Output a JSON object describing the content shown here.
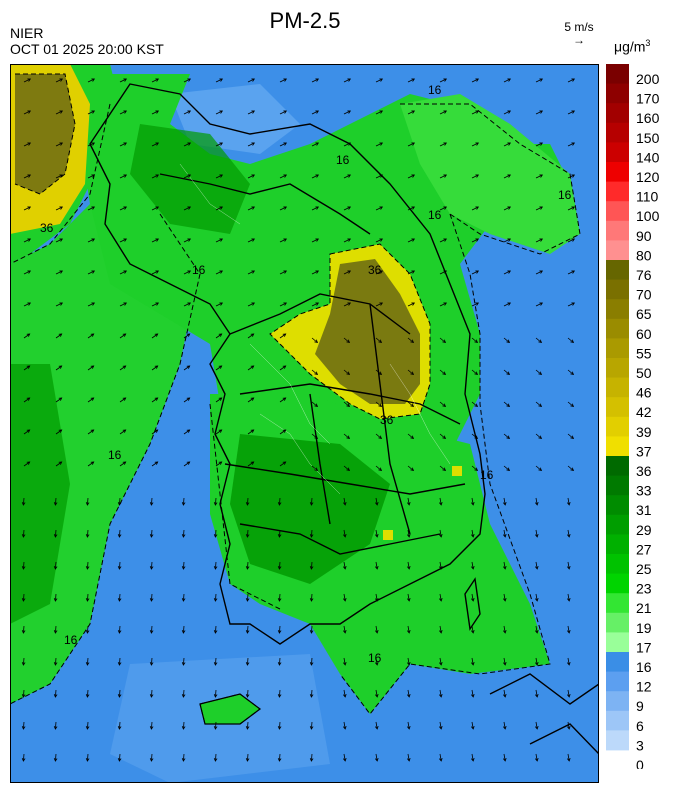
{
  "header": {
    "title": "PM-2.5",
    "agency": "NIER",
    "datetime": "OCT 01 2025 20:00 KST",
    "wind_scale_label": "5 m/s",
    "unit_label": "μg/m",
    "unit_exp": "3"
  },
  "map": {
    "contour_labels": [
      "16",
      "16",
      "16",
      "16",
      "16",
      "16",
      "16",
      "16",
      "16",
      "36",
      "36",
      "36"
    ]
  },
  "legend": {
    "labels": [
      "200",
      "170",
      "160",
      "150",
      "140",
      "120",
      "110",
      "100",
      "90",
      "80",
      "76",
      "70",
      "65",
      "60",
      "55",
      "50",
      "46",
      "42",
      "39",
      "37",
      "36",
      "33",
      "31",
      "29",
      "27",
      "25",
      "23",
      "21",
      "19",
      "17",
      "16",
      "12",
      "9",
      "6",
      "3",
      "0"
    ],
    "colors": [
      "#7a0000",
      "#8e0000",
      "#a20000",
      "#b60000",
      "#cc0000",
      "#ee0000",
      "#ff2a2a",
      "#ff5555",
      "#ff7878",
      "#ff9090",
      "#666600",
      "#7a7000",
      "#8a7e00",
      "#9a8c00",
      "#aa9a00",
      "#b8a600",
      "#c6b300",
      "#d4c000",
      "#e2cf00",
      "#f0df00",
      "#006a00",
      "#007a00",
      "#008c00",
      "#009e00",
      "#00b000",
      "#00c200",
      "#00d400",
      "#33e633",
      "#66f066",
      "#99ff99",
      "#3a8ee6",
      "#5c9ff0",
      "#7db3f3",
      "#9dc6f7",
      "#bcd9fa"
    ],
    "colors_note": ""
  },
  "colors": {
    "sea_blue": "#3d8fe8",
    "land_green": "#1ecf2a",
    "dark_green": "#008a00",
    "haze_olive": "#7a7a10",
    "haze_yellow": "#dede00"
  }
}
